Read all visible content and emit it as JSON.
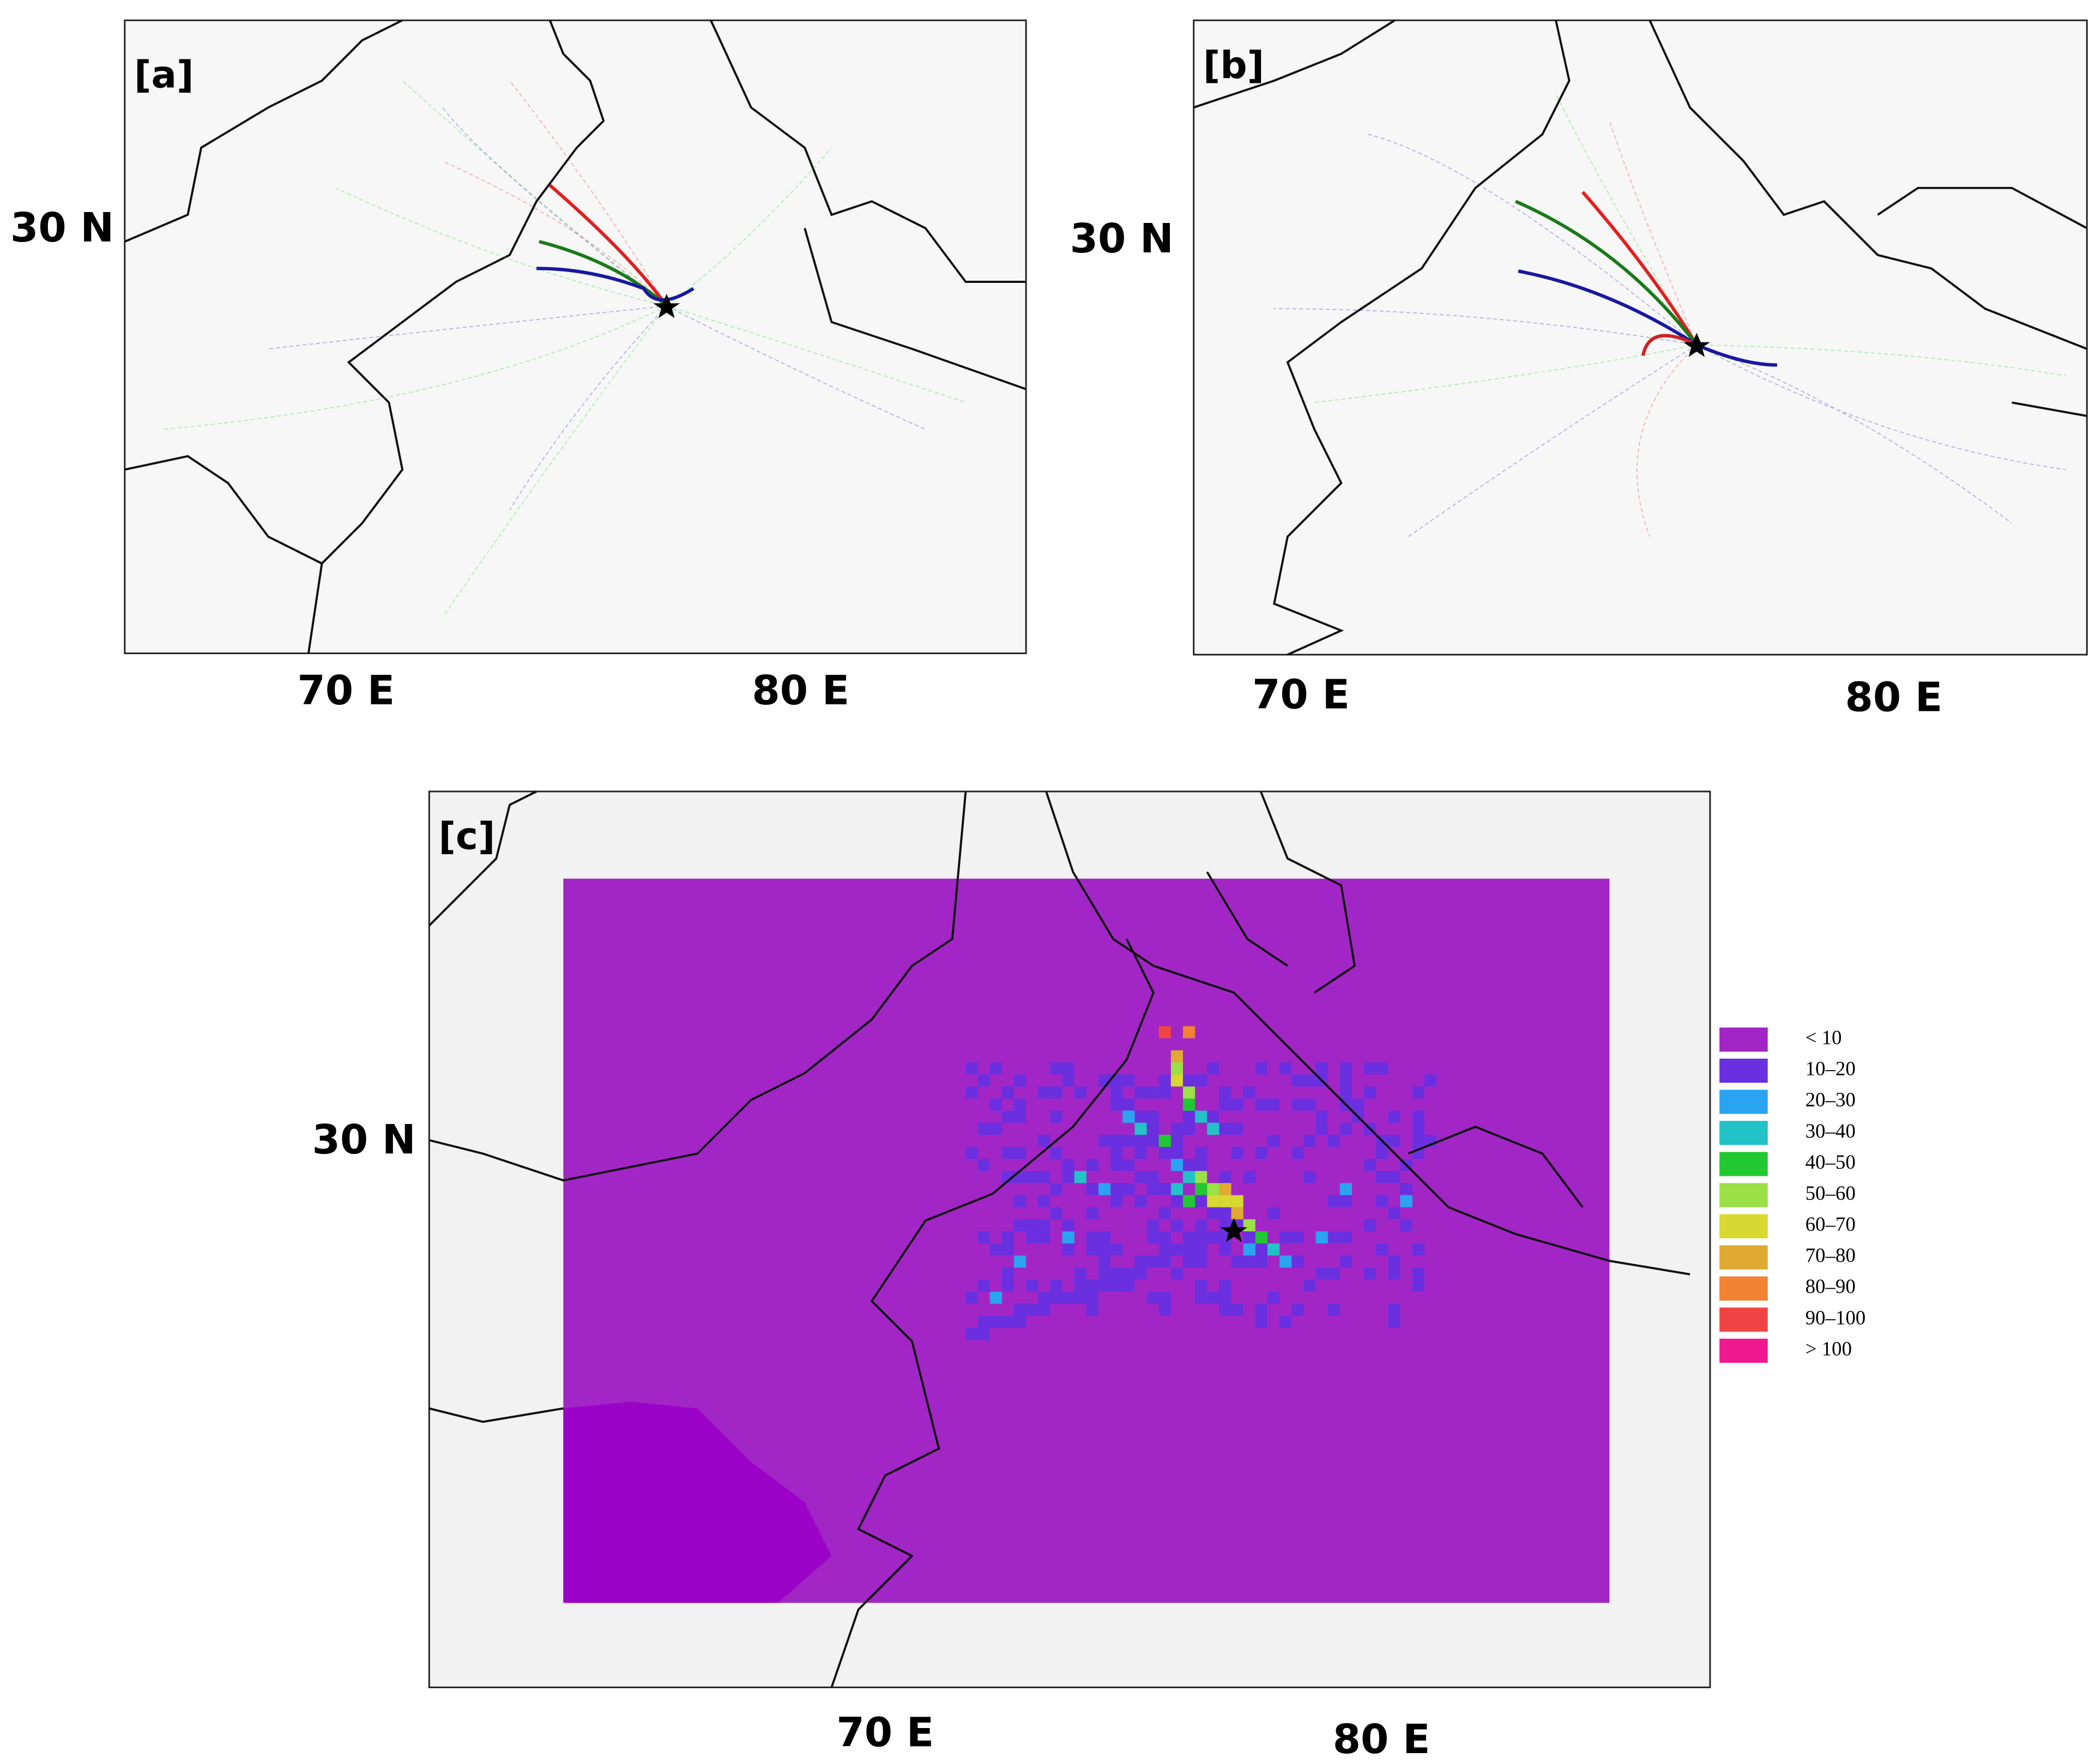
{
  "panels": [
    {
      "label": "[a]",
      "x_labels": [
        "70 E",
        "80 E"
      ],
      "y_labels": [
        "30 N"
      ]
    },
    {
      "label": "[b]",
      "x_labels": [
        "70 E",
        "80 E"
      ],
      "y_labels": [
        "30 N"
      ]
    },
    {
      "label": "[c]",
      "x_labels": [
        "70 E",
        "80 E"
      ],
      "y_labels": [
        "30 N"
      ]
    }
  ],
  "legend": [
    {
      "label": "< 10",
      "color": "#a226c6"
    },
    {
      "label": "10–20",
      "color": "#6a30e0"
    },
    {
      "label": "20–30",
      "color": "#2aa4f0"
    },
    {
      "label": "30–40",
      "color": "#22c2c6"
    },
    {
      "label": "40–50",
      "color": "#22c832"
    },
    {
      "label": "50–60",
      "color": "#9ae046"
    },
    {
      "label": "60–70",
      "color": "#d8d832"
    },
    {
      "label": "70–80",
      "color": "#e0aa32"
    },
    {
      "label": "80–90",
      "color": "#f08232"
    },
    {
      "label": "90–100",
      "color": "#f04444"
    },
    {
      "label": "> 100",
      "color": "#f0188e"
    }
  ]
}
